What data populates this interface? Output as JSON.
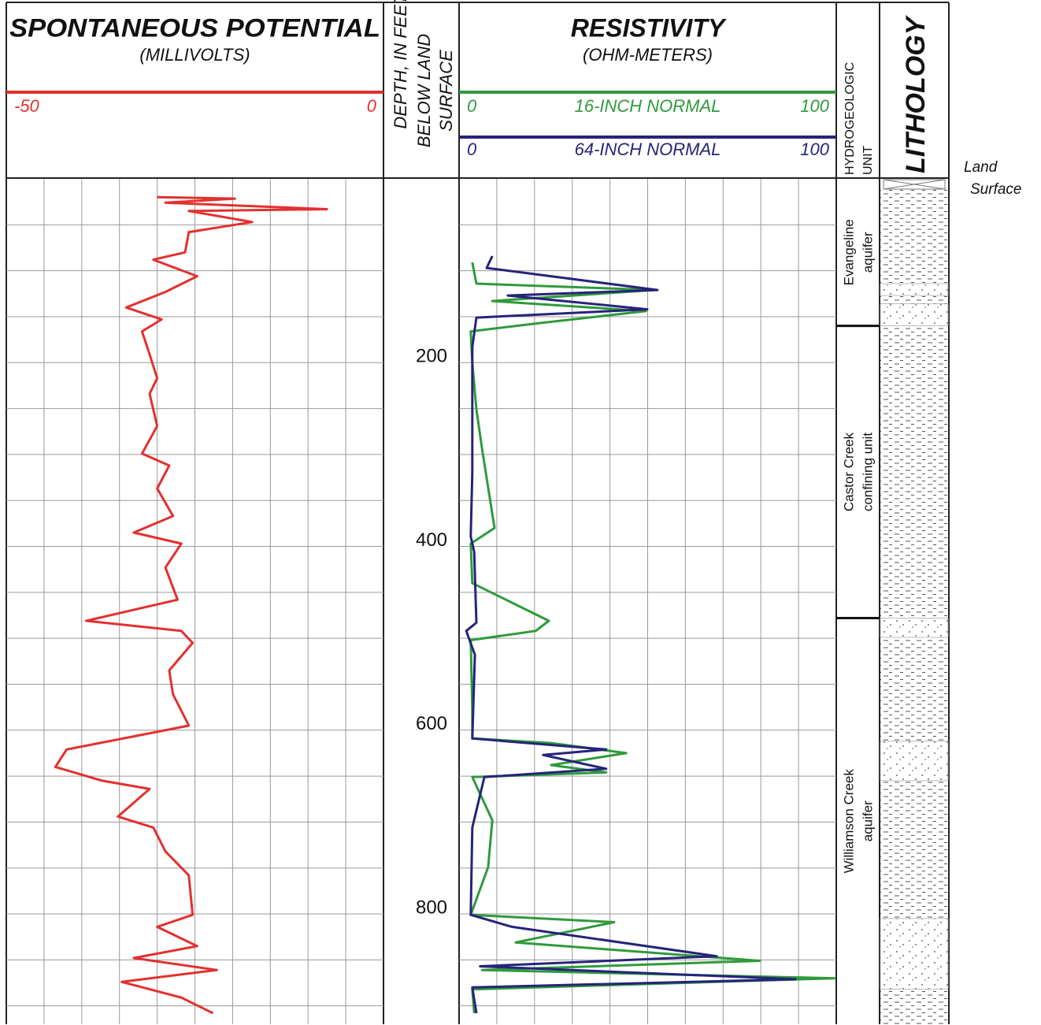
{
  "depth_axis": {
    "label_lines": [
      "DEPTH, IN FEET",
      "BELOW LAND",
      "SURFACE"
    ],
    "ylim": [
      0,
      920
    ],
    "yticks": [
      200,
      400,
      600,
      800
    ],
    "ygrid": [
      50,
      100,
      150,
      200,
      250,
      300,
      350,
      400,
      450,
      500,
      550,
      600,
      650,
      700,
      750,
      800,
      850,
      900
    ]
  },
  "chart_data": [
    {
      "type": "line",
      "title": "SPONTANEOUS POTENTIAL",
      "subtitle": "(MILLIVOLTS)",
      "xlim": [
        -50,
        0
      ],
      "xgrid": [
        -45,
        -40,
        -35,
        -30,
        -25,
        -20,
        -15,
        -10,
        -5
      ],
      "series": [
        {
          "color": "#e3302f",
          "depth": [
            20,
            21.5,
            26,
            33,
            35,
            47,
            58,
            80,
            88,
            106,
            123,
            140,
            153,
            166,
            191,
            217,
            234,
            269,
            299,
            312,
            337,
            367,
            385,
            397,
            423,
            458,
            481,
            492,
            505,
            535,
            561,
            595,
            605,
            621,
            640,
            655,
            664,
            694,
            706,
            732,
            758,
            801,
            814,
            835,
            848,
            861,
            874,
            891,
            908
          ],
          "values": [
            -30.0,
            -19.7,
            -28.9,
            -7.5,
            -25.8,
            -17.4,
            -25.8,
            -26.3,
            -30.5,
            -24.7,
            -28.9,
            -34.1,
            -29.4,
            -32.0,
            -31.0,
            -30.0,
            -31.0,
            -30.0,
            -32.0,
            -28.4,
            -30.0,
            -27.9,
            -33.1,
            -26.8,
            -28.9,
            -27.3,
            -39.4,
            -26.8,
            -25.3,
            -28.4,
            -27.9,
            -25.8,
            -32.0,
            -42.0,
            -43.5,
            -37.3,
            -31.0,
            -35.2,
            -30.5,
            -28.9,
            -25.8,
            -25.3,
            -30.0,
            -24.7,
            -33.1,
            -22.1,
            -34.7,
            -26.8,
            -22.6
          ]
        }
      ]
    },
    {
      "type": "line",
      "title": "RESISTIVITY",
      "subtitle": "(OHM-METERS)",
      "xlim": [
        0,
        100
      ],
      "xgrid": [
        10,
        20,
        30,
        40,
        50,
        60,
        70,
        80,
        90
      ],
      "series": [
        {
          "name": "16-INCH NORMAL",
          "color": "#2f9a3c",
          "xlim": [
            0,
            100
          ],
          "depth": [
            91,
            114,
            121,
            133,
            144,
            157,
            166,
            200,
            251,
            294,
            380,
            397,
            440,
            481,
            492,
            502,
            578,
            609,
            614,
            625,
            638,
            646,
            651,
            698,
            749,
            801,
            809,
            831,
            851,
            861,
            870,
            882,
            908
          ],
          "values": [
            3.5,
            4.6,
            51.6,
            8.8,
            49.5,
            21.3,
            3.1,
            3.5,
            4.6,
            6.1,
            9.4,
            3.1,
            3.5,
            23.8,
            20.3,
            3.1,
            3.5,
            3.5,
            24.4,
            44.3,
            24.4,
            39.0,
            3.5,
            8.8,
            7.7,
            3.1,
            41.1,
            15.0,
            79.7,
            6.1,
            99.6,
            3.5,
            4.0
          ]
        },
        {
          "name": "64-INCH NORMAL",
          "color": "#25247a",
          "xlim": [
            0,
            100
          ],
          "depth": [
            84,
            97,
            121,
            127,
            142,
            151,
            183,
            320,
            389,
            406,
            483,
            492,
            518,
            609,
            621,
            627,
            642,
            651,
            706,
            801,
            814,
            846,
            857,
            871,
            880,
            908
          ],
          "values": [
            8.8,
            7.3,
            52.6,
            12.9,
            49.9,
            4.6,
            3.5,
            3.5,
            3.1,
            4.0,
            4.6,
            1.9,
            4.2,
            3.5,
            39.0,
            22.3,
            39.0,
            6.7,
            3.5,
            3.1,
            14.0,
            68.3,
            5.6,
            89.2,
            3.5,
            4.6
          ]
        }
      ]
    }
  ],
  "hydrogeologic_units": {
    "label_lines": [
      "HYDROGEOLOGIC",
      "UNIT"
    ],
    "units": [
      {
        "name_lines": [
          "Evangeline",
          "aquifer"
        ],
        "top": 0,
        "bottom": 160
      },
      {
        "name_lines": [
          "Castor Creek",
          "confining unit"
        ],
        "top": 160,
        "bottom": 478
      },
      {
        "name_lines": [
          "Williamson Creek",
          "aquifer"
        ],
        "top": 478,
        "bottom": 920
      }
    ]
  },
  "lithology": {
    "title": "LITHOLOGY",
    "sand": [
      [
        114,
        127
      ],
      [
        136,
        160
      ],
      [
        478,
        499
      ],
      [
        612,
        655
      ],
      [
        805,
        882
      ]
    ]
  },
  "land_surface": [
    "Land",
    "Surface"
  ]
}
